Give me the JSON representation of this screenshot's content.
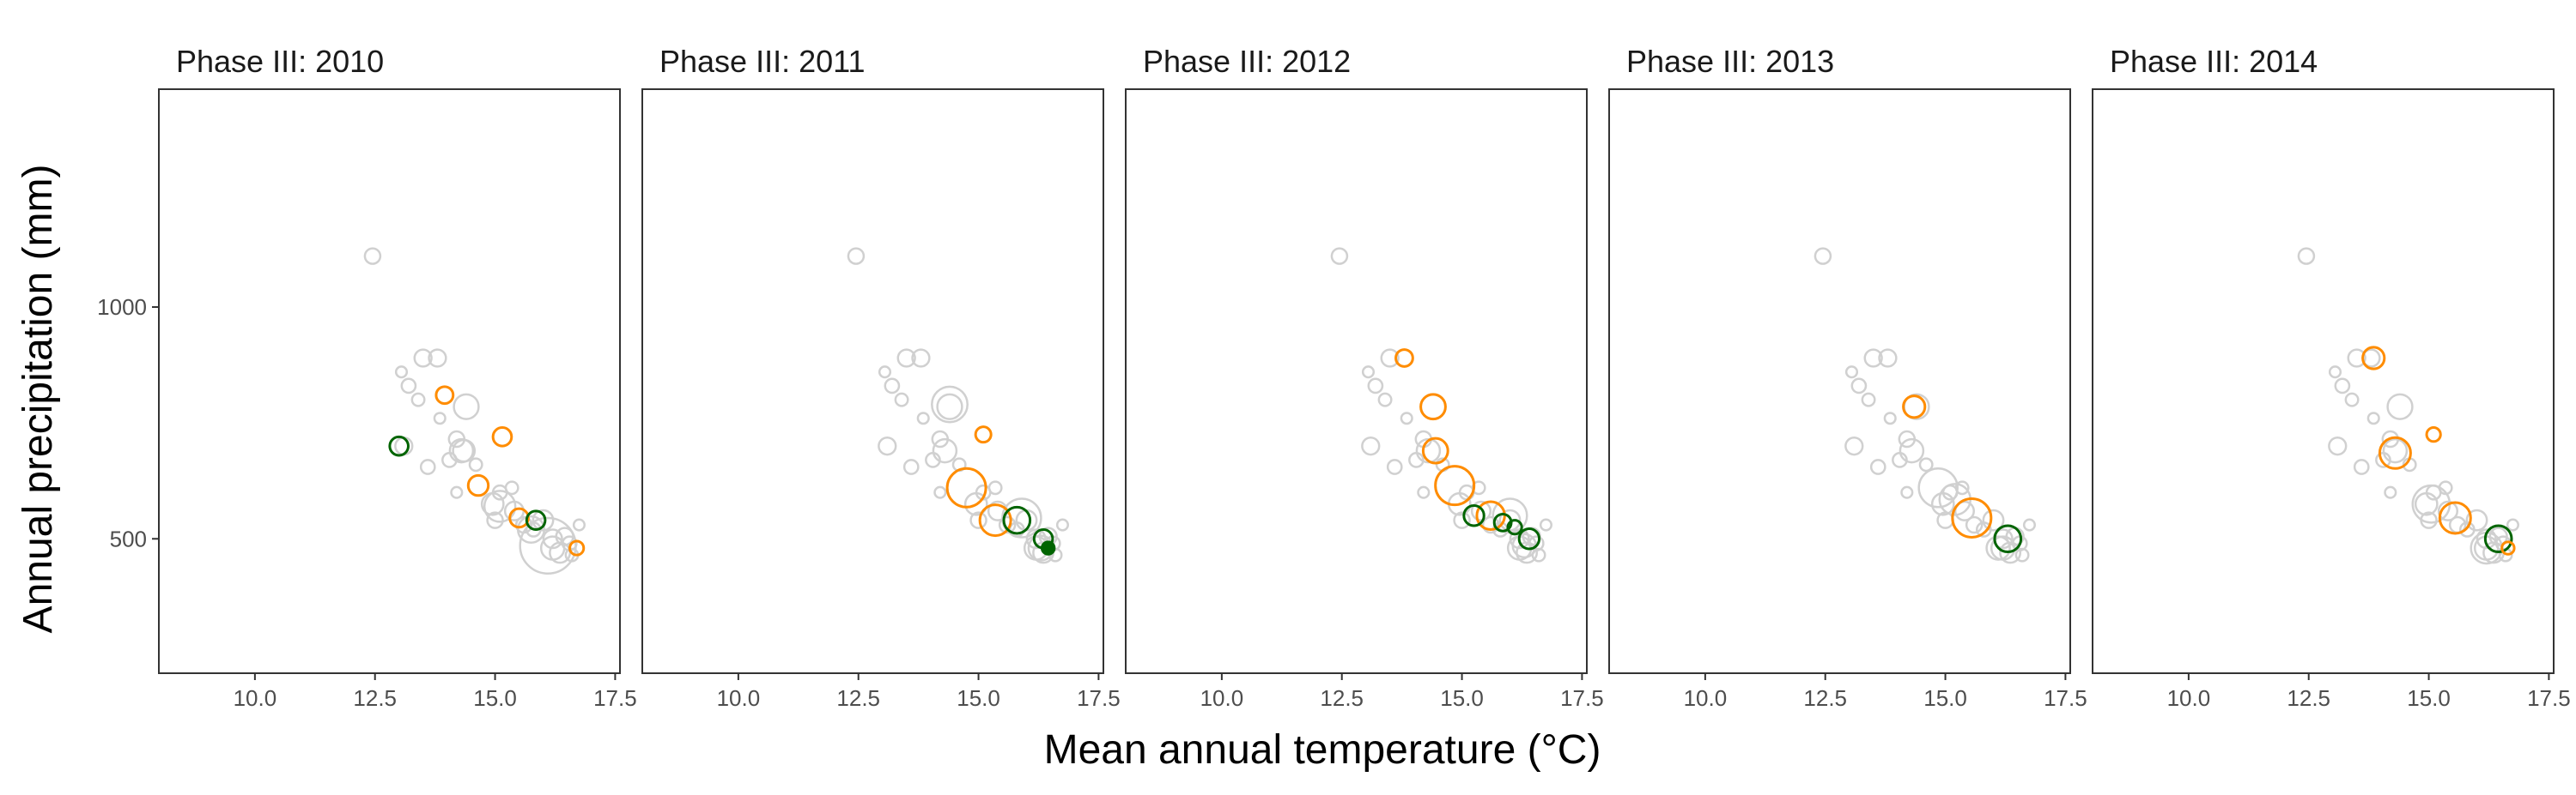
{
  "chart_data": {
    "type": "scatter",
    "xlabel": "Mean annual temperature (°C)",
    "ylabel": "Annual precipitation (mm)",
    "xlim": [
      8.0,
      17.6
    ],
    "ylim": [
      210,
      1470
    ],
    "xticks": [
      10.0,
      12.5,
      15.0,
      17.5
    ],
    "xtick_labels": [
      "10.0",
      "12.5",
      "15.0",
      "17.5"
    ],
    "yticks": [
      500,
      1000
    ],
    "ytick_labels": [
      "500",
      "1000"
    ],
    "grid": false,
    "legend": "none",
    "colors": {
      "background": "#d0d0d0",
      "orange": "#ff8c00",
      "green": "#006400"
    },
    "background_points": [
      {
        "x": 12.45,
        "y": 1110,
        "s": 1.0
      },
      {
        "x": 13.05,
        "y": 860,
        "s": 0.7
      },
      {
        "x": 13.2,
        "y": 830,
        "s": 0.9
      },
      {
        "x": 13.4,
        "y": 800,
        "s": 0.8
      },
      {
        "x": 13.5,
        "y": 890,
        "s": 1.1
      },
      {
        "x": 13.8,
        "y": 890,
        "s": 1.1
      },
      {
        "x": 13.85,
        "y": 760,
        "s": 0.7
      },
      {
        "x": 13.1,
        "y": 700,
        "s": 1.1
      },
      {
        "x": 13.6,
        "y": 655,
        "s": 0.9
      },
      {
        "x": 14.05,
        "y": 670,
        "s": 0.9
      },
      {
        "x": 14.2,
        "y": 715,
        "s": 1.0
      },
      {
        "x": 14.4,
        "y": 785,
        "s": 1.6
      },
      {
        "x": 14.3,
        "y": 690,
        "s": 1.5
      },
      {
        "x": 14.2,
        "y": 600,
        "s": 0.7
      },
      {
        "x": 14.6,
        "y": 660,
        "s": 0.8
      },
      {
        "x": 14.95,
        "y": 575,
        "s": 1.4
      },
      {
        "x": 15.0,
        "y": 540,
        "s": 1.0
      },
      {
        "x": 15.1,
        "y": 600,
        "s": 0.9
      },
      {
        "x": 15.35,
        "y": 610,
        "s": 0.8
      },
      {
        "x": 15.4,
        "y": 560,
        "s": 1.2
      },
      {
        "x": 15.6,
        "y": 530,
        "s": 1.0
      },
      {
        "x": 15.8,
        "y": 520,
        "s": 0.9
      },
      {
        "x": 16.0,
        "y": 540,
        "s": 1.3
      },
      {
        "x": 16.2,
        "y": 500,
        "s": 1.2
      },
      {
        "x": 16.2,
        "y": 480,
        "s": 1.5
      },
      {
        "x": 16.35,
        "y": 470,
        "s": 1.3
      },
      {
        "x": 16.45,
        "y": 505,
        "s": 1.1
      },
      {
        "x": 16.55,
        "y": 490,
        "s": 0.9
      },
      {
        "x": 16.75,
        "y": 530,
        "s": 0.7
      },
      {
        "x": 16.6,
        "y": 465,
        "s": 0.8
      }
    ],
    "panels": [
      {
        "title": "Phase III: 2010",
        "background_scale": [
          {
            "x": 15.1,
            "y": 570,
            "s": 2.0
          },
          {
            "x": 15.75,
            "y": 520,
            "s": 1.7
          },
          {
            "x": 16.1,
            "y": 485,
            "s": 3.6
          },
          {
            "x": 14.35,
            "y": 690,
            "s": 1.4
          }
        ],
        "highlights": [
          {
            "x": 13.0,
            "y": 700,
            "s": 1.2,
            "color": "green",
            "filled": false
          },
          {
            "x": 13.95,
            "y": 810,
            "s": 1.1,
            "color": "orange",
            "filled": false
          },
          {
            "x": 15.15,
            "y": 720,
            "s": 1.2,
            "color": "orange",
            "filled": false
          },
          {
            "x": 14.65,
            "y": 615,
            "s": 1.3,
            "color": "orange",
            "filled": false
          },
          {
            "x": 15.5,
            "y": 545,
            "s": 1.2,
            "color": "orange",
            "filled": false
          },
          {
            "x": 15.85,
            "y": 540,
            "s": 1.2,
            "color": "green",
            "filled": false
          },
          {
            "x": 16.7,
            "y": 480,
            "s": 0.9,
            "color": "orange",
            "filled": false
          }
        ]
      },
      {
        "title": "Phase III: 2011",
        "background_scale": [
          {
            "x": 14.4,
            "y": 790,
            "s": 2.3
          },
          {
            "x": 15.9,
            "y": 545,
            "s": 2.5
          },
          {
            "x": 16.3,
            "y": 480,
            "s": 1.6
          }
        ],
        "highlights": [
          {
            "x": 15.1,
            "y": 725,
            "s": 1.0,
            "color": "orange",
            "filled": false
          },
          {
            "x": 14.75,
            "y": 610,
            "s": 2.5,
            "color": "orange",
            "filled": false
          },
          {
            "x": 15.35,
            "y": 540,
            "s": 2.0,
            "color": "orange",
            "filled": false
          },
          {
            "x": 15.8,
            "y": 540,
            "s": 1.7,
            "color": "green",
            "filled": false
          },
          {
            "x": 16.35,
            "y": 500,
            "s": 1.2,
            "color": "green",
            "filled": false
          },
          {
            "x": 16.45,
            "y": 480,
            "s": 0.8,
            "color": "green",
            "filled": true
          }
        ]
      },
      {
        "title": "Phase III: 2012",
        "background_scale": [
          {
            "x": 16.0,
            "y": 550,
            "s": 2.2
          },
          {
            "x": 16.3,
            "y": 485,
            "s": 1.5
          }
        ],
        "highlights": [
          {
            "x": 13.8,
            "y": 890,
            "s": 1.1,
            "color": "orange",
            "filled": false
          },
          {
            "x": 14.4,
            "y": 785,
            "s": 1.6,
            "color": "orange",
            "filled": false
          },
          {
            "x": 14.45,
            "y": 690,
            "s": 1.6,
            "color": "orange",
            "filled": false
          },
          {
            "x": 14.85,
            "y": 615,
            "s": 2.5,
            "color": "orange",
            "filled": false
          },
          {
            "x": 15.6,
            "y": 550,
            "s": 1.8,
            "color": "orange",
            "filled": false
          },
          {
            "x": 15.25,
            "y": 550,
            "s": 1.3,
            "color": "green",
            "filled": false
          },
          {
            "x": 15.85,
            "y": 535,
            "s": 1.1,
            "color": "green",
            "filled": false
          },
          {
            "x": 16.1,
            "y": 525,
            "s": 0.9,
            "color": "green",
            "filled": false
          },
          {
            "x": 16.4,
            "y": 500,
            "s": 1.3,
            "color": "green",
            "filled": false
          }
        ]
      },
      {
        "title": "Phase III: 2013",
        "background_scale": [
          {
            "x": 14.85,
            "y": 610,
            "s": 2.5
          },
          {
            "x": 15.2,
            "y": 585,
            "s": 2.0
          },
          {
            "x": 16.1,
            "y": 480,
            "s": 1.5
          }
        ],
        "highlights": [
          {
            "x": 14.35,
            "y": 785,
            "s": 1.4,
            "color": "orange",
            "filled": false
          },
          {
            "x": 15.55,
            "y": 545,
            "s": 2.5,
            "color": "orange",
            "filled": false
          },
          {
            "x": 16.3,
            "y": 500,
            "s": 1.7,
            "color": "green",
            "filled": false
          }
        ]
      },
      {
        "title": "Phase III: 2014",
        "background_scale": [
          {
            "x": 15.05,
            "y": 575,
            "s": 2.4
          },
          {
            "x": 16.2,
            "y": 480,
            "s": 2.0
          }
        ],
        "highlights": [
          {
            "x": 13.85,
            "y": 890,
            "s": 1.4,
            "color": "orange",
            "filled": false
          },
          {
            "x": 14.3,
            "y": 685,
            "s": 2.0,
            "color": "orange",
            "filled": false
          },
          {
            "x": 15.1,
            "y": 725,
            "s": 0.9,
            "color": "orange",
            "filled": false
          },
          {
            "x": 15.55,
            "y": 545,
            "s": 2.0,
            "color": "orange",
            "filled": false
          },
          {
            "x": 16.45,
            "y": 500,
            "s": 1.7,
            "color": "green",
            "filled": false
          },
          {
            "x": 16.65,
            "y": 480,
            "s": 0.8,
            "color": "orange",
            "filled": false
          }
        ]
      }
    ]
  }
}
